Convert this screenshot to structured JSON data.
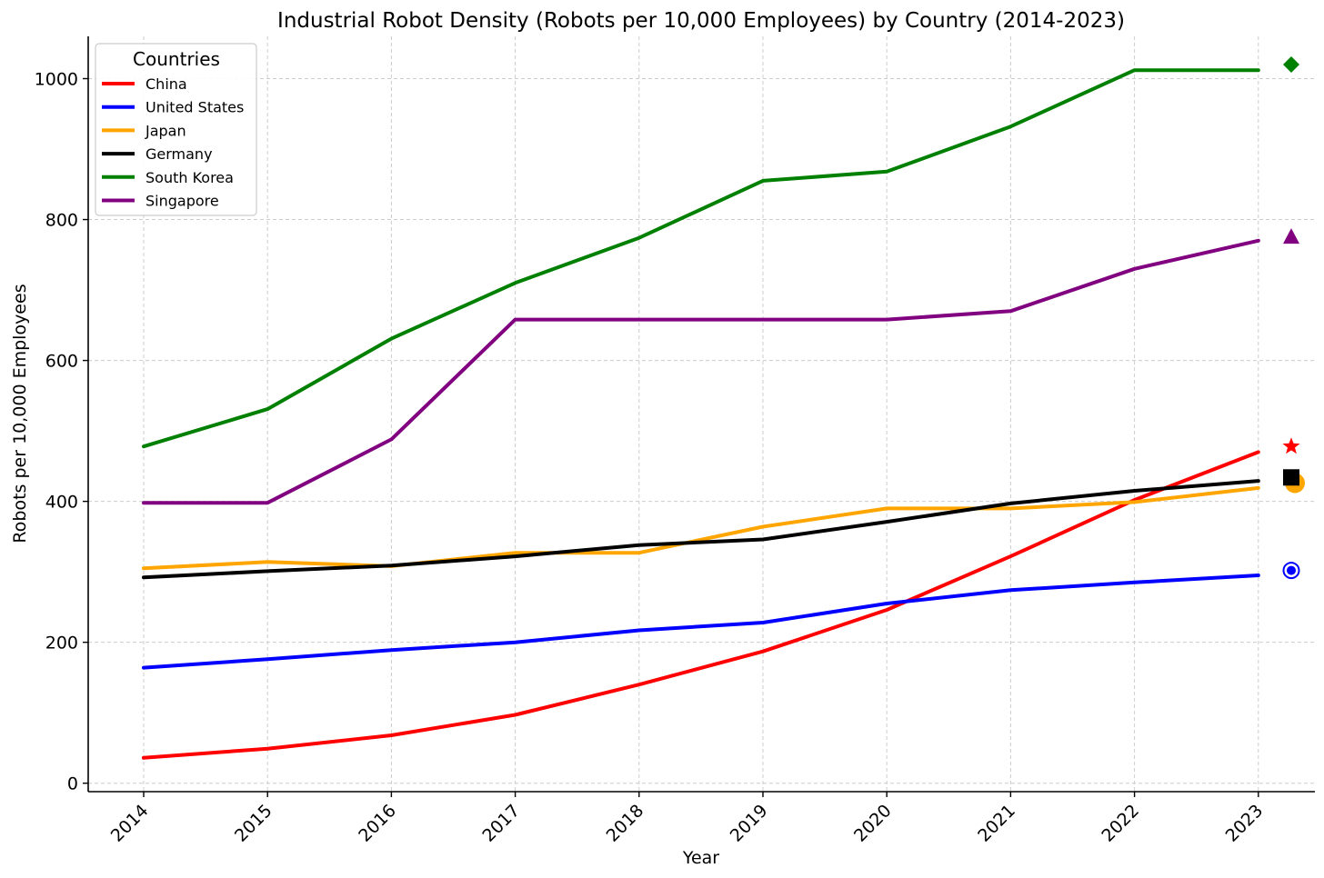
{
  "chart_data": {
    "type": "line",
    "title": "Industrial Robot Density (Robots per 10,000 Employees) by Country (2014-2023)",
    "xlabel": "Year",
    "ylabel": "Robots per 10,000 Employees",
    "categories": [
      "2014",
      "2015",
      "2016",
      "2017",
      "2018",
      "2019",
      "2020",
      "2021",
      "2022",
      "2023"
    ],
    "ylim": [
      -12,
      1060
    ],
    "yticks": [
      0,
      200,
      400,
      600,
      800,
      1000
    ],
    "grid": true,
    "legend": {
      "title": "Countries",
      "placement": "upper-left"
    },
    "series": [
      {
        "name": "China",
        "color": "#ff0000",
        "marker": "star",
        "marker_value": 478,
        "values": [
          36,
          49,
          68,
          97,
          140,
          187,
          246,
          322,
          402,
          470
        ]
      },
      {
        "name": "United States",
        "color": "#0000ff",
        "marker": "circle-ring",
        "marker_value": 302,
        "values": [
          164,
          176,
          189,
          200,
          217,
          228,
          255,
          274,
          285,
          295
        ]
      },
      {
        "name": "Japan",
        "color": "#ffa500",
        "marker": "circle",
        "marker_value": 426,
        "values": [
          305,
          314,
          308,
          327,
          327,
          364,
          390,
          390,
          399,
          419
        ]
      },
      {
        "name": "Germany",
        "color": "#000000",
        "marker": "square",
        "marker_value": 434,
        "values": [
          292,
          301,
          309,
          322,
          338,
          346,
          371,
          397,
          415,
          429
        ]
      },
      {
        "name": "South Korea",
        "color": "#008000",
        "marker": "diamond",
        "marker_value": 1020,
        "values": [
          478,
          531,
          631,
          710,
          774,
          855,
          868,
          932,
          1012,
          1012
        ]
      },
      {
        "name": "Singapore",
        "color": "#800080",
        "marker": "triangle",
        "marker_value": 776,
        "values": [
          398,
          398,
          488,
          658,
          658,
          658,
          658,
          670,
          730,
          770
        ]
      }
    ]
  }
}
